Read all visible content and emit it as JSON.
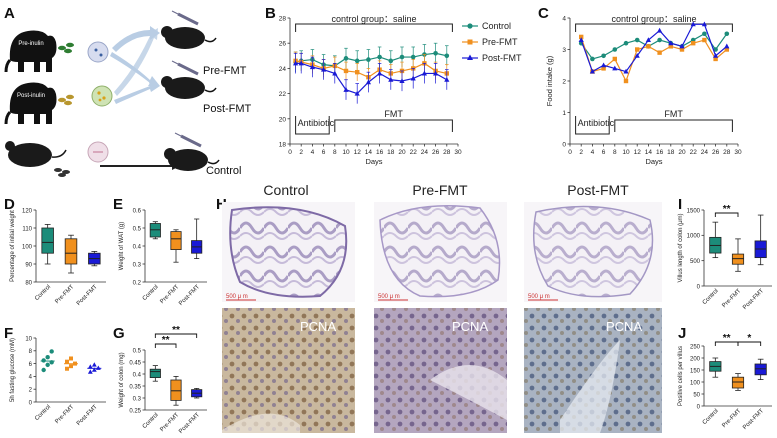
{
  "panels": {
    "A": {
      "label": "A",
      "rows": [
        "Pre-inulin",
        "Post-inulin"
      ],
      "groups": [
        "Pre-FMT",
        "Post-FMT",
        "Control"
      ]
    },
    "B": {
      "label": "B",
      "top_note": "control group：saline",
      "bottom_notes": [
        "Antibiotic",
        "FMT"
      ],
      "xlabel": "Days"
    },
    "C": {
      "label": "C",
      "top_note": "control group：saline",
      "bottom_notes": [
        "Antibiotic",
        "FMT"
      ],
      "xlabel": "Days",
      "ylabel": "Food intake (g)"
    },
    "D": {
      "label": "D",
      "ylabel": "Percentage of initial weight"
    },
    "E": {
      "label": "E",
      "ylabel": "Weight of WAT (g)"
    },
    "F": {
      "label": "F",
      "ylabel": "5h fasting glucose (mM)"
    },
    "G": {
      "label": "G",
      "ylabel": "Weight of colon (mg)",
      "sig": [
        "**",
        "**"
      ]
    },
    "H": {
      "label": "H",
      "columns": [
        "Control",
        "Pre-FMT",
        "Post-FMT"
      ],
      "stain": "PCNA",
      "scale": "500 μ m"
    },
    "I": {
      "label": "I",
      "ylabel": "Villus length of colon (μm)",
      "sig": [
        "**"
      ]
    },
    "J": {
      "label": "J",
      "ylabel": "Positive cells per villus",
      "sig": [
        "**",
        "*"
      ]
    }
  },
  "legend": [
    "Control",
    "Pre-FMT",
    "Post-FMT"
  ],
  "groups": [
    "Control",
    "Pre-FMT",
    "Post-FMT"
  ],
  "colors": {
    "control": "#1c8c7a",
    "pre": "#f0901e",
    "post": "#1a1ad6"
  },
  "chart_data": [
    {
      "id": "B",
      "type": "line",
      "xlabel": "Days",
      "ylabel": "",
      "xlim": [
        0,
        30
      ],
      "ylim": [
        18,
        28
      ],
      "xticks": [
        0,
        2,
        4,
        6,
        8,
        10,
        12,
        14,
        16,
        18,
        20,
        22,
        24,
        26,
        28,
        30
      ],
      "yticks": [
        18,
        20,
        22,
        24,
        26,
        28
      ],
      "x": [
        1,
        2,
        4,
        6,
        8,
        10,
        12,
        14,
        16,
        18,
        20,
        22,
        24,
        26,
        28
      ],
      "series": [
        {
          "name": "Control",
          "values": [
            24.5,
            24.6,
            24.7,
            24.3,
            24.2,
            24.8,
            24.6,
            24.7,
            24.9,
            24.6,
            24.9,
            24.9,
            25.1,
            25.2,
            25.0
          ],
          "err": [
            0.8,
            0.8,
            0.8,
            0.8,
            0.8,
            0.8,
            0.8,
            0.8,
            0.8,
            0.8,
            0.8,
            0.8,
            0.8,
            0.8,
            0.8
          ]
        },
        {
          "name": "Pre-FMT",
          "values": [
            24.6,
            24.5,
            24.3,
            24.0,
            24.2,
            23.8,
            23.7,
            23.3,
            23.9,
            23.6,
            23.8,
            24.0,
            24.4,
            23.8,
            23.6
          ],
          "err": [
            0.7,
            0.7,
            0.7,
            0.7,
            0.7,
            0.7,
            0.7,
            0.7,
            0.7,
            0.7,
            0.7,
            0.7,
            0.7,
            0.7,
            0.7
          ]
        },
        {
          "name": "Post-FMT",
          "values": [
            24.4,
            24.4,
            24.1,
            23.9,
            23.6,
            22.3,
            22.0,
            22.9,
            23.6,
            23.1,
            23.0,
            23.2,
            23.6,
            23.6,
            23.1
          ],
          "err": [
            0.8,
            0.8,
            0.8,
            0.8,
            0.8,
            0.8,
            0.8,
            0.8,
            0.8,
            0.8,
            0.8,
            0.8,
            0.8,
            0.8,
            0.8
          ]
        }
      ]
    },
    {
      "id": "C",
      "type": "line",
      "xlabel": "Days",
      "ylabel": "Food intake (g)",
      "xlim": [
        0,
        30
      ],
      "ylim": [
        0,
        4
      ],
      "xticks": [
        0,
        2,
        4,
        6,
        8,
        10,
        12,
        14,
        16,
        18,
        20,
        22,
        24,
        26,
        28,
        30
      ],
      "yticks": [
        0,
        1,
        2,
        3,
        4
      ],
      "x": [
        2,
        4,
        6,
        8,
        10,
        12,
        14,
        16,
        18,
        20,
        22,
        24,
        26,
        28
      ],
      "series": [
        {
          "name": "Control",
          "values": [
            3.2,
            2.7,
            2.8,
            3.0,
            3.2,
            3.3,
            3.1,
            3.3,
            3.2,
            3.1,
            3.3,
            3.5,
            3.0,
            3.5
          ]
        },
        {
          "name": "Pre-FMT",
          "values": [
            3.4,
            2.3,
            2.4,
            2.7,
            2.0,
            3.0,
            3.1,
            2.9,
            3.1,
            3.0,
            3.2,
            3.3,
            2.7,
            3.0
          ]
        },
        {
          "name": "Post-FMT",
          "values": [
            3.3,
            2.3,
            2.5,
            2.4,
            2.3,
            2.8,
            3.3,
            3.6,
            3.2,
            3.1,
            3.8,
            3.8,
            2.8,
            3.1
          ]
        }
      ]
    },
    {
      "id": "D",
      "type": "box",
      "ylabel": "Percentage of initial weight",
      "ylim": [
        80,
        120
      ],
      "yticks": [
        80,
        90,
        100,
        110,
        120
      ],
      "categories": [
        "Control",
        "Pre-FMT",
        "Post-FMT"
      ],
      "boxes": [
        {
          "min": 90,
          "q1": 96,
          "median": 102,
          "q3": 110,
          "max": 112
        },
        {
          "min": 85,
          "q1": 90,
          "median": 96,
          "q3": 104,
          "max": 106
        },
        {
          "min": 89,
          "q1": 90,
          "median": 93,
          "q3": 96,
          "max": 97
        }
      ]
    },
    {
      "id": "E",
      "type": "box",
      "ylabel": "Weight of WAT (g)",
      "ylim": [
        0.2,
        0.6
      ],
      "yticks": [
        0.2,
        0.3,
        0.4,
        0.5,
        0.6
      ],
      "categories": [
        "Control",
        "Pre-FMT",
        "Post-FMT"
      ],
      "boxes": [
        {
          "min": 0.44,
          "q1": 0.45,
          "median": 0.49,
          "q3": 0.525,
          "max": 0.535
        },
        {
          "min": 0.31,
          "q1": 0.38,
          "median": 0.44,
          "q3": 0.48,
          "max": 0.49
        },
        {
          "min": 0.33,
          "q1": 0.36,
          "median": 0.395,
          "q3": 0.43,
          "max": 0.55
        }
      ]
    },
    {
      "id": "F",
      "type": "scatter",
      "ylabel": "5h fasting glucose (mM)",
      "ylim": [
        0,
        10
      ],
      "yticks": [
        0,
        2,
        4,
        6,
        8,
        10
      ],
      "categories": [
        "Control",
        "Pre-FMT",
        "Post-FMT"
      ],
      "points": [
        [
          5.0,
          5.8,
          6.2,
          6.5,
          7.0,
          7.9
        ],
        [
          5.2,
          5.6,
          6.0,
          6.3,
          6.8
        ],
        [
          4.7,
          5.0,
          5.3,
          5.5,
          5.8
        ]
      ]
    },
    {
      "id": "G",
      "type": "box",
      "ylabel": "Weight of colon (mg)",
      "ylim": [
        0.25,
        0.5
      ],
      "yticks": [
        0.25,
        0.3,
        0.35,
        0.4,
        0.45,
        0.5
      ],
      "categories": [
        "Control",
        "Pre-FMT",
        "Post-FMT"
      ],
      "boxes": [
        {
          "min": 0.37,
          "q1": 0.385,
          "median": 0.41,
          "q3": 0.42,
          "max": 0.435
        },
        {
          "min": 0.27,
          "q1": 0.29,
          "median": 0.33,
          "q3": 0.375,
          "max": 0.39
        },
        {
          "min": 0.3,
          "q1": 0.305,
          "median": 0.32,
          "q3": 0.335,
          "max": 0.34
        }
      ]
    },
    {
      "id": "I",
      "type": "box",
      "ylabel": "Villus length of colon (μm)",
      "ylim": [
        0,
        1500
      ],
      "yticks": [
        0,
        500,
        1000,
        1500
      ],
      "categories": [
        "Control",
        "Pre-FMT",
        "Post-FMT"
      ],
      "boxes": [
        {
          "min": 560,
          "q1": 650,
          "median": 800,
          "q3": 960,
          "max": 1260
        },
        {
          "min": 290,
          "q1": 430,
          "median": 540,
          "q3": 630,
          "max": 930
        },
        {
          "min": 420,
          "q1": 560,
          "median": 730,
          "q3": 890,
          "max": 1400
        }
      ]
    },
    {
      "id": "J",
      "type": "box",
      "ylabel": "Positive cells per villus",
      "ylim": [
        0,
        250
      ],
      "yticks": [
        0,
        50,
        100,
        150,
        200,
        250
      ],
      "categories": [
        "Control",
        "Pre-FMT",
        "Post-FMT"
      ],
      "boxes": [
        {
          "min": 120,
          "q1": 145,
          "median": 165,
          "q3": 185,
          "max": 200
        },
        {
          "min": 65,
          "q1": 75,
          "median": 100,
          "q3": 120,
          "max": 135
        },
        {
          "min": 110,
          "q1": 130,
          "median": 155,
          "q3": 175,
          "max": 195
        }
      ]
    }
  ]
}
